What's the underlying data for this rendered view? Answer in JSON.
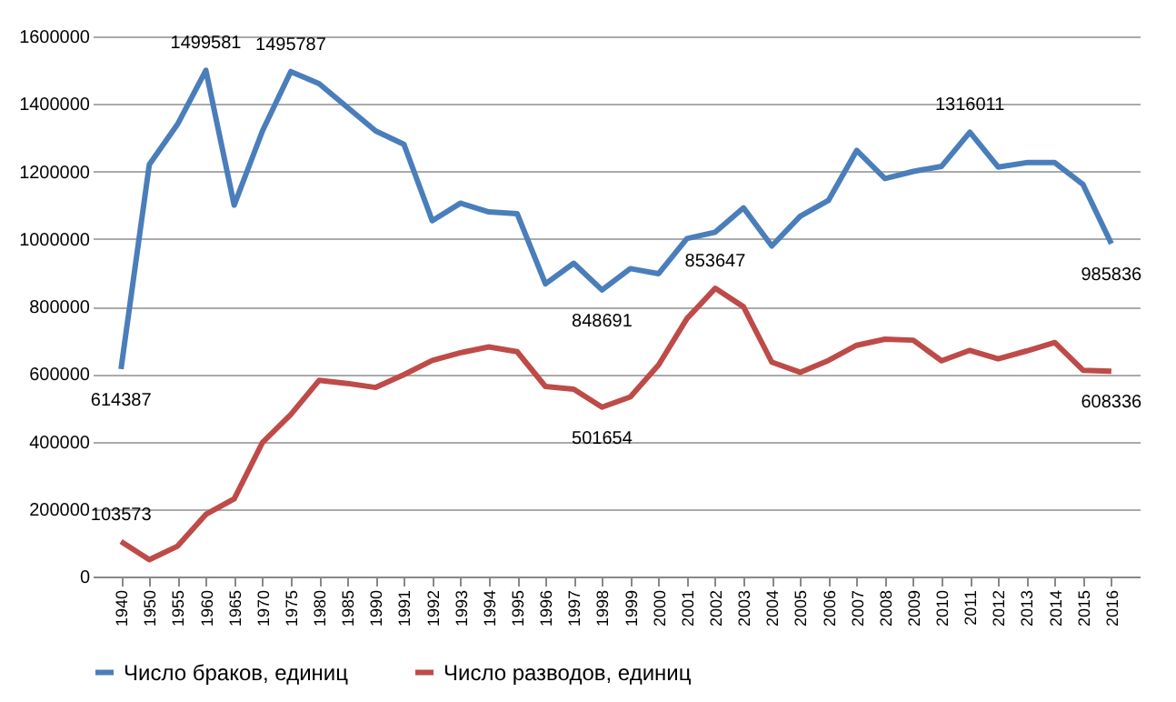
{
  "chart_data": {
    "type": "line",
    "categories": [
      "1940",
      "1950",
      "1955",
      "1960",
      "1965",
      "1970",
      "1975",
      "1980",
      "1985",
      "1990",
      "1991",
      "1992",
      "1993",
      "1994",
      "1995",
      "1996",
      "1997",
      "1998",
      "1999",
      "2000",
      "2001",
      "2002",
      "2003",
      "2004",
      "2005",
      "2006",
      "2007",
      "2008",
      "2009",
      "2010",
      "2011",
      "2012",
      "2013",
      "2014",
      "2015",
      "2016"
    ],
    "series": [
      {
        "name": "Число браков, единиц",
        "color": "#4a7ebb",
        "values": [
          614387,
          1220000,
          1340000,
          1499581,
          1100000,
          1320000,
          1495787,
          1460000,
          1390000,
          1320000,
          1280000,
          1054000,
          1106000,
          1080000,
          1075000,
          867000,
          928000,
          848691,
          912000,
          897000,
          1001000,
          1020000,
          1092000,
          979000,
          1067000,
          1114000,
          1262000,
          1179000,
          1200000,
          1215000,
          1316011,
          1213000,
          1226000,
          1226000,
          1161000,
          985836
        ],
        "value_labels": [
          "614387",
          null,
          null,
          "1499581",
          null,
          null,
          "1495787",
          null,
          null,
          null,
          null,
          null,
          null,
          null,
          null,
          null,
          null,
          "848691",
          null,
          null,
          null,
          null,
          null,
          null,
          null,
          null,
          null,
          null,
          null,
          null,
          "1316011",
          null,
          null,
          null,
          null,
          "985836"
        ]
      },
      {
        "name": "Число разводов, единиц",
        "color": "#be4b48",
        "values": [
          103573,
          50000,
          90000,
          184000,
          230000,
          397000,
          480000,
          581000,
          572000,
          560000,
          598000,
          640000,
          663000,
          680000,
          666000,
          563000,
          555000,
          501654,
          532000,
          627000,
          764000,
          853647,
          799000,
          635000,
          605000,
          640000,
          685000,
          703000,
          700000,
          639000,
          670000,
          645000,
          668000,
          693000,
          611000,
          608336
        ],
        "value_labels": [
          "103573",
          null,
          null,
          null,
          null,
          null,
          null,
          null,
          null,
          null,
          null,
          null,
          null,
          null,
          null,
          null,
          null,
          "501654",
          null,
          null,
          null,
          "853647",
          null,
          null,
          null,
          null,
          null,
          null,
          null,
          null,
          null,
          null,
          null,
          null,
          null,
          "608336"
        ]
      }
    ],
    "ylim": [
      0,
      1600000
    ],
    "yticks": [
      0,
      200000,
      400000,
      600000,
      800000,
      1000000,
      1200000,
      1400000,
      1600000
    ],
    "grid": "y",
    "legend": "bottom",
    "marker": "none",
    "line_style": "solid"
  }
}
